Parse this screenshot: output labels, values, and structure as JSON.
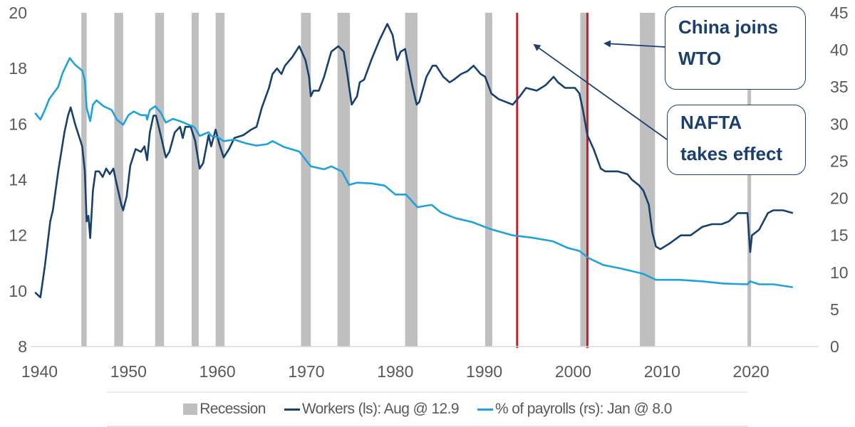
{
  "chart_data": {
    "type": "line",
    "title": "",
    "xlabel": "",
    "ylabel_left": "",
    "ylabel_right": "",
    "xlim": [
      1939.0,
      2027.6
    ],
    "ylim_left": [
      8,
      20
    ],
    "ylim_right": [
      0,
      45
    ],
    "x_ticks": [
      "1940",
      "1950",
      "1960",
      "1970",
      "1980",
      "1990",
      "2000",
      "2010",
      "2020"
    ],
    "y_ticks_left": [
      "8",
      "10",
      "12",
      "14",
      "16",
      "18",
      "20"
    ],
    "y_ticks_right": [
      "0",
      "5",
      "10",
      "15",
      "20",
      "25",
      "30",
      "35",
      "40",
      "45"
    ],
    "grid": false,
    "legend_position": "bottom",
    "colors": {
      "workers": "#17406d",
      "payrolls": "#1ea2dc",
      "recession": "#bfbfbf",
      "event": "#c0202a",
      "axis_text": "#595959"
    },
    "recessions": [
      [
        1944.7,
        1945.3
      ],
      [
        1948.4,
        1949.4
      ],
      [
        1953.0,
        1954.0
      ],
      [
        1957.1,
        1957.9
      ],
      [
        1959.8,
        1960.8
      ],
      [
        1969.4,
        1970.5
      ],
      [
        1973.5,
        1974.9
      ],
      [
        1981.1,
        1982.5
      ],
      [
        1990.1,
        1990.9
      ],
      [
        2000.8,
        2001.6
      ],
      [
        2007.5,
        2009.2
      ],
      [
        2019.6,
        2020.0
      ]
    ],
    "events": [
      {
        "year": 1993.7,
        "label": "NAFTA takes effect"
      },
      {
        "year": 2001.6,
        "label": "China joins WTO"
      }
    ],
    "series": [
      {
        "name": "Workers (ls): Aug @ 12.9",
        "axis": "left",
        "x": [
          1939.5,
          1940.1,
          1940.6,
          1941.2,
          1941.5,
          1942.1,
          1942.8,
          1943.2,
          1943.5,
          1944.0,
          1944.4,
          1944.8,
          1945.1,
          1945.3,
          1945.5,
          1945.7,
          1946.0,
          1946.3,
          1946.7,
          1947.1,
          1947.5,
          1947.9,
          1948.3,
          1948.7,
          1949.2,
          1949.4,
          1949.8,
          1950.2,
          1950.8,
          1951.4,
          1951.8,
          1952.1,
          1952.4,
          1952.8,
          1953.1,
          1953.7,
          1954.2,
          1954.6,
          1955.2,
          1955.8,
          1956.1,
          1956.4,
          1957.0,
          1957.5,
          1958.0,
          1958.4,
          1959.0,
          1959.3,
          1959.8,
          1960.2,
          1960.7,
          1961.3,
          1961.9,
          1962.9,
          1963.8,
          1964.4,
          1965.0,
          1965.8,
          1966.2,
          1966.7,
          1967.2,
          1967.6,
          1968.4,
          1969.2,
          1969.9,
          1970.3,
          1970.5,
          1970.8,
          1971.4,
          1972.0,
          1972.8,
          1973.6,
          1974.2,
          1974.6,
          1975.1,
          1975.7,
          1976.0,
          1976.5,
          1977.3,
          1978.2,
          1979.1,
          1979.7,
          1980.2,
          1980.6,
          1981.1,
          1981.9,
          1982.4,
          1982.7,
          1983.5,
          1984.2,
          1984.6,
          1985.4,
          1986.1,
          1986.6,
          1987.4,
          1988.1,
          1988.8,
          1989.6,
          1990.1,
          1990.8,
          1991.6,
          1992.4,
          1993.2,
          1994.0,
          1994.7,
          1995.9,
          1996.9,
          1997.8,
          1998.3,
          1999.1,
          2000.2,
          2000.7,
          2001.1,
          2001.6,
          2002.3,
          2003.1,
          2003.6,
          2004.2,
          2005.0,
          2006.1,
          2006.6,
          2007.4,
          2007.9,
          2008.5,
          2008.9,
          2009.3,
          2009.8,
          2010.8,
          2012.1,
          2013.2,
          2014.5,
          2015.6,
          2016.7,
          2017.5,
          2018.5,
          2019.6,
          2019.9,
          2020.1,
          2020.9,
          2021.9,
          2022.5,
          2023.6,
          2024.7
        ],
        "values": [
          9.95,
          9.77,
          10.9,
          12.5,
          12.9,
          14.3,
          15.7,
          16.3,
          16.6,
          16.0,
          15.6,
          15.2,
          14.3,
          12.5,
          12.7,
          11.9,
          13.6,
          14.3,
          14.3,
          14.1,
          14.4,
          14.2,
          14.4,
          13.8,
          13.1,
          12.9,
          13.4,
          14.5,
          15.1,
          15.0,
          15.2,
          14.7,
          15.7,
          16.3,
          16.3,
          15.5,
          14.8,
          15.0,
          15.7,
          15.9,
          15.5,
          15.9,
          15.9,
          15.4,
          14.4,
          14.6,
          15.6,
          15.2,
          15.8,
          15.3,
          14.8,
          15.1,
          15.5,
          15.6,
          15.8,
          15.9,
          16.6,
          17.3,
          17.8,
          18.0,
          17.8,
          18.1,
          18.4,
          18.8,
          18.3,
          17.7,
          17.0,
          17.2,
          17.2,
          17.7,
          18.6,
          18.8,
          18.6,
          17.8,
          16.7,
          17.0,
          17.5,
          17.6,
          18.3,
          19.0,
          19.6,
          19.2,
          18.3,
          18.6,
          18.7,
          17.4,
          16.7,
          16.8,
          17.7,
          18.1,
          18.1,
          17.7,
          17.5,
          17.6,
          17.8,
          17.9,
          18.1,
          17.8,
          17.7,
          17.1,
          16.9,
          16.8,
          16.7,
          17.0,
          17.3,
          17.2,
          17.4,
          17.7,
          17.5,
          17.3,
          17.3,
          17.1,
          16.5,
          15.6,
          15.1,
          14.4,
          14.3,
          14.3,
          14.3,
          14.2,
          14.0,
          13.8,
          13.6,
          13.1,
          12.1,
          11.6,
          11.5,
          11.7,
          12.0,
          12.0,
          12.3,
          12.4,
          12.4,
          12.5,
          12.8,
          12.8,
          11.4,
          12.0,
          12.2,
          12.8,
          12.9,
          12.9,
          12.8
        ]
      },
      {
        "name": "% of payrolls (rs): Jan @ 8.0",
        "axis": "right",
        "x": [
          1939.5,
          1940.1,
          1940.6,
          1941.1,
          1942.1,
          1942.6,
          1943.4,
          1944.0,
          1944.8,
          1945.1,
          1945.3,
          1945.7,
          1946.0,
          1946.4,
          1947.2,
          1948.1,
          1948.7,
          1949.4,
          1950.0,
          1950.6,
          1951.4,
          1952.0,
          1952.1,
          1952.4,
          1953.0,
          1953.6,
          1954.2,
          1955.0,
          1955.8,
          1956.8,
          1957.4,
          1958.0,
          1959.0,
          1959.3,
          1960.1,
          1960.7,
          1961.9,
          1963.2,
          1964.4,
          1965.6,
          1966.2,
          1967.5,
          1969.2,
          1970.5,
          1972.0,
          1972.8,
          1974.0,
          1974.8,
          1975.7,
          1977.3,
          1978.8,
          1980.0,
          1981.2,
          1982.5,
          1983.5,
          1984.1,
          1985.1,
          1986.8,
          1988.6,
          1990.8,
          1993.2,
          1995.3,
          1997.7,
          1999.4,
          2000.7,
          2001.8,
          2003.4,
          2005.5,
          2007.9,
          2009.3,
          2011.9,
          2014.5,
          2016.9,
          2019.6,
          2019.9,
          2020.9,
          2022.5,
          2024.7
        ],
        "values": [
          31.5,
          30.6,
          31.9,
          33.4,
          35.0,
          36.9,
          38.9,
          38.0,
          37.2,
          35.9,
          32.2,
          30.4,
          32.6,
          33.2,
          32.4,
          31.9,
          30.6,
          29.9,
          31.2,
          31.7,
          31.2,
          31.2,
          30.6,
          31.9,
          32.4,
          31.6,
          30.2,
          30.7,
          30.4,
          29.9,
          29.6,
          28.4,
          28.9,
          28.4,
          28.2,
          27.7,
          27.9,
          27.4,
          27.1,
          27.3,
          27.7,
          26.9,
          26.3,
          24.3,
          23.9,
          24.3,
          23.6,
          21.8,
          22.1,
          22.0,
          21.7,
          20.5,
          20.5,
          18.8,
          19.0,
          19.1,
          18.1,
          17.3,
          16.8,
          15.8,
          15.0,
          14.7,
          14.2,
          13.3,
          12.9,
          11.9,
          11.0,
          10.5,
          9.8,
          9.0,
          9.0,
          8.8,
          8.5,
          8.4,
          8.8,
          8.4,
          8.4,
          8.0
        ]
      }
    ],
    "annotations": {
      "china": [
        "China joins",
        "WTO"
      ],
      "nafta": [
        "NAFTA",
        "takes effect"
      ]
    },
    "legend": {
      "recession": "Recession",
      "workers": "Workers (ls): Aug @ 12.9",
      "payrolls": "% of payrolls (rs): Jan @ 8.0"
    }
  }
}
